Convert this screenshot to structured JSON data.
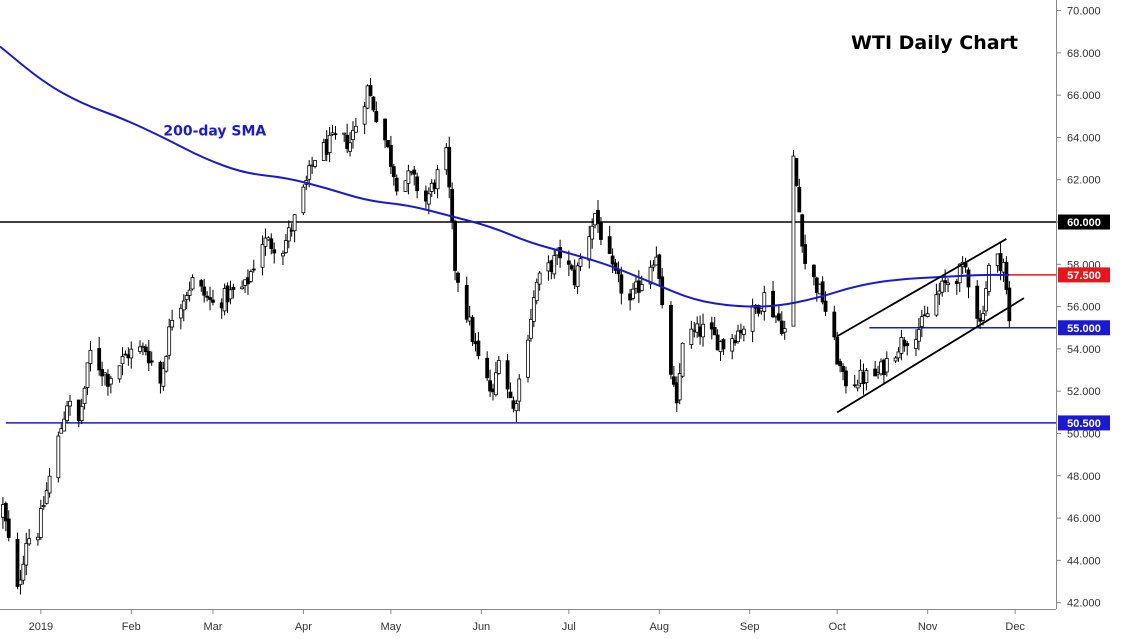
{
  "chart_data": {
    "type": "candlestick",
    "title": "WTI Daily Chart",
    "ylim": [
      41.7,
      70.5
    ],
    "xlim": [
      "2018-12-18",
      "2019-12-15"
    ],
    "y_ticks": [
      "42.000",
      "44.000",
      "46.000",
      "48.000",
      "50.000",
      "52.000",
      "54.000",
      "56.000",
      "58.000",
      "60.000",
      "62.000",
      "64.000",
      "66.000",
      "68.000",
      "70.000"
    ],
    "x_ticks": [
      {
        "label": "2019",
        "date": "2019-01-01"
      },
      {
        "label": "Feb",
        "date": "2019-02-01"
      },
      {
        "label": "Mar",
        "date": "2019-03-01"
      },
      {
        "label": "Apr",
        "date": "2019-04-01"
      },
      {
        "label": "May",
        "date": "2019-05-01"
      },
      {
        "label": "Jun",
        "date": "2019-06-01"
      },
      {
        "label": "Jul",
        "date": "2019-07-01"
      },
      {
        "label": "Aug",
        "date": "2019-08-01"
      },
      {
        "label": "Sep",
        "date": "2019-09-01"
      },
      {
        "label": "Oct",
        "date": "2019-10-01"
      },
      {
        "label": "Nov",
        "date": "2019-11-01"
      },
      {
        "label": "Dec",
        "date": "2019-12-01"
      }
    ],
    "price_path": [
      [
        "2018-12-19",
        46.5
      ],
      [
        "2018-12-24",
        42.5
      ],
      [
        "2018-12-27",
        45.0
      ],
      [
        "2018-12-31",
        45.4
      ],
      [
        "2019-01-04",
        47.9
      ],
      [
        "2019-01-10",
        51.5
      ],
      [
        "2019-01-14",
        50.5
      ],
      [
        "2019-01-18",
        53.8
      ],
      [
        "2019-01-24",
        52.6
      ],
      [
        "2019-01-31",
        53.8
      ],
      [
        "2019-02-06",
        54.0
      ],
      [
        "2019-02-11",
        52.4
      ],
      [
        "2019-02-15",
        55.6
      ],
      [
        "2019-02-22",
        57.2
      ],
      [
        "2019-03-01",
        56.1
      ],
      [
        "2019-03-07",
        56.6
      ],
      [
        "2019-03-12",
        56.9
      ],
      [
        "2019-03-18",
        59.1
      ],
      [
        "2019-03-25",
        58.8
      ],
      [
        "2019-03-29",
        60.1
      ],
      [
        "2019-04-05",
        63.1
      ],
      [
        "2019-04-12",
        63.9
      ],
      [
        "2019-04-17",
        63.8
      ],
      [
        "2019-04-23",
        66.3
      ],
      [
        "2019-04-29",
        63.9
      ],
      [
        "2019-05-03",
        61.9
      ],
      [
        "2019-05-08",
        62.1
      ],
      [
        "2019-05-13",
        61.0
      ],
      [
        "2019-05-20",
        63.1
      ],
      [
        "2019-05-23",
        57.9
      ],
      [
        "2019-05-31",
        53.5
      ],
      [
        "2019-06-05",
        51.7
      ],
      [
        "2019-06-07",
        53.9
      ],
      [
        "2019-06-12",
        51.1
      ],
      [
        "2019-06-14",
        52.5
      ],
      [
        "2019-06-20",
        57.1
      ],
      [
        "2019-06-28",
        58.5
      ],
      [
        "2019-07-03",
        57.3
      ],
      [
        "2019-07-10",
        60.4
      ],
      [
        "2019-07-16",
        57.6
      ],
      [
        "2019-07-22",
        56.2
      ],
      [
        "2019-07-31",
        58.6
      ],
      [
        "2019-08-02",
        55.7
      ],
      [
        "2019-08-07",
        51.1
      ],
      [
        "2019-08-09",
        54.5
      ],
      [
        "2019-08-16",
        54.9
      ],
      [
        "2019-08-23",
        54.2
      ],
      [
        "2019-08-30",
        55.1
      ],
      [
        "2019-09-06",
        56.5
      ],
      [
        "2019-09-13",
        54.9
      ],
      [
        "2019-09-16",
        62.9
      ],
      [
        "2019-09-20",
        58.1
      ],
      [
        "2019-09-26",
        56.4
      ],
      [
        "2019-10-01",
        53.6
      ],
      [
        "2019-10-03",
        52.5
      ],
      [
        "2019-10-09",
        52.6
      ],
      [
        "2019-10-15",
        52.8
      ],
      [
        "2019-10-22",
        54.2
      ],
      [
        "2019-10-30",
        55.1
      ],
      [
        "2019-11-04",
        56.5
      ],
      [
        "2019-11-08",
        57.2
      ],
      [
        "2019-11-14",
        57.8
      ],
      [
        "2019-11-19",
        55.2
      ],
      [
        "2019-11-22",
        57.8
      ],
      [
        "2019-11-25",
        58.2
      ],
      [
        "2019-11-27",
        58.1
      ],
      [
        "2019-11-29",
        55.2
      ]
    ],
    "sma_200": [
      [
        "2018-12-18",
        68.3
      ],
      [
        "2019-01-02",
        66.6
      ],
      [
        "2019-01-15",
        65.6
      ],
      [
        "2019-01-29",
        64.9
      ],
      [
        "2019-02-12",
        64.0
      ],
      [
        "2019-02-26",
        63.0
      ],
      [
        "2019-03-12",
        62.3
      ],
      [
        "2019-03-26",
        62.1
      ],
      [
        "2019-04-09",
        61.6
      ],
      [
        "2019-04-23",
        61.0
      ],
      [
        "2019-05-07",
        60.8
      ],
      [
        "2019-05-21",
        60.3
      ],
      [
        "2019-06-04",
        59.8
      ],
      [
        "2019-06-18",
        59.0
      ],
      [
        "2019-07-02",
        58.5
      ],
      [
        "2019-07-16",
        57.9
      ],
      [
        "2019-07-30",
        57.1
      ],
      [
        "2019-08-13",
        56.3
      ],
      [
        "2019-08-27",
        56.0
      ],
      [
        "2019-09-10",
        56.0
      ],
      [
        "2019-09-24",
        56.4
      ],
      [
        "2019-10-08",
        57.0
      ],
      [
        "2019-10-22",
        57.3
      ],
      [
        "2019-11-05",
        57.4
      ],
      [
        "2019-11-19",
        57.5
      ],
      [
        "2019-11-29",
        57.5
      ]
    ],
    "horizontal_levels": [
      {
        "value": 60.0,
        "label": "60.000",
        "color": "#000000",
        "start": "2018-12-18"
      },
      {
        "value": 57.5,
        "label": "57.500",
        "color": "#e8151b",
        "start": "2019-11-21"
      },
      {
        "value": 55.0,
        "label": "55.000",
        "color": "#1a1ad6",
        "start": "2019-10-12"
      },
      {
        "value": 50.5,
        "label": "50.500",
        "color": "#1a1ad6",
        "start": "2018-12-20"
      }
    ],
    "channel_lines": [
      {
        "start": [
          "2019-10-01",
          51.0
        ],
        "end": [
          "2019-12-04",
          56.4
        ]
      },
      {
        "start": [
          "2019-10-01",
          54.6
        ],
        "end": [
          "2019-11-28",
          59.2
        ]
      }
    ],
    "annotations": [
      {
        "text": "200-day SMA",
        "date": "2019-02-12",
        "value": 64.1,
        "color": "#1a1ad6"
      }
    ],
    "colors": {
      "candle": "#000000",
      "sma": "#1a1ad6",
      "background": "#ffffff",
      "grid": "#e6e6e6"
    }
  }
}
